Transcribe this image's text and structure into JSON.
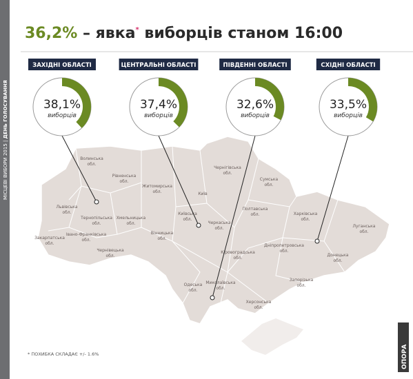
{
  "header": {
    "parts": [
      "36,2%",
      "– явка",
      "*",
      "виборців станом 16:00"
    ]
  },
  "sidebar": [
    "МІСЦЕВІ ВИБОРИ 2015 |",
    "ДЕНЬ ГОЛОСУВАННЯ"
  ],
  "chart_data": [
    {
      "type": "donut",
      "title": "ЗАХІДНІ ОБЛАСТІ",
      "values": [
        38.1
      ],
      "value_labels": [
        "38,1%"
      ],
      "label": "виборців",
      "color": "#6b8a23"
    },
    {
      "type": "donut",
      "title": "ЦЕНТРАЛЬНІ ОБЛАСТІ",
      "values": [
        37.4
      ],
      "value_labels": [
        "37,4%"
      ],
      "label": "виборців",
      "color": "#6b8a23"
    },
    {
      "type": "donut",
      "title": "ПІВДЕННІ ОБЛАСТІ",
      "values": [
        32.6
      ],
      "value_labels": [
        "32,6%"
      ],
      "label": "виборців",
      "color": "#6b8a23"
    },
    {
      "type": "donut",
      "title": "СХІДНІ ОБЛАСТІ",
      "values": [
        33.5
      ],
      "value_labels": [
        "33,5%"
      ],
      "label": "виборців",
      "color": "#6b8a23"
    }
  ],
  "map": {
    "regions": [
      [
        "Волинська",
        "обл."
      ],
      [
        "Рівненська",
        "обл."
      ],
      [
        "Львівська",
        "обл."
      ],
      [
        "Тернопільська",
        "обл."
      ],
      [
        "Хмельницька",
        "обл."
      ],
      [
        "Закарпатська",
        "обл."
      ],
      [
        "Івано-Франківська",
        "обл."
      ],
      [
        "Чернівецька",
        "обл."
      ],
      [
        "Житомирська",
        "обл."
      ],
      [
        "Київ"
      ],
      [
        "Київська",
        "обл."
      ],
      [
        "Вінницька",
        "обл."
      ],
      [
        "Черкаська",
        "обл."
      ],
      [
        "Чернігівська",
        "обл."
      ],
      [
        "Сумська",
        "обл."
      ],
      [
        "Полтавська",
        "обл."
      ],
      [
        "Кіровоградська",
        "обл."
      ],
      [
        "Харківська",
        "обл."
      ],
      [
        "Луганська",
        "обл."
      ],
      [
        "Донецька",
        "обл."
      ],
      [
        "Дніпропетровська",
        "обл."
      ],
      [
        "Запорізька",
        "обл."
      ],
      [
        "Миколаївська",
        "обл."
      ],
      [
        "Одеська",
        "обл."
      ],
      [
        "Херсонська",
        "обл."
      ]
    ]
  },
  "footnote": "* ПОХИБКА СКЛАДАЄ +/- 1.6%",
  "brand": "ОПОРА"
}
